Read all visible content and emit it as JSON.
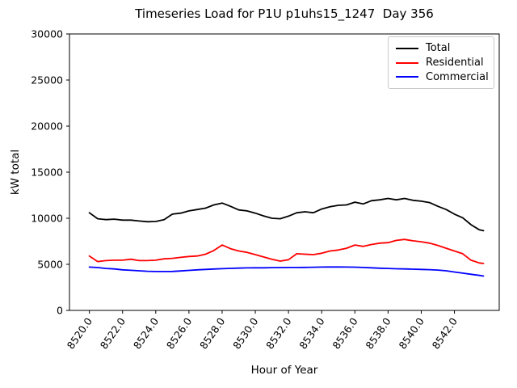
{
  "chart_data": {
    "type": "line",
    "title": "Timeseries Load for P1U p1uhs15_1247  Day 356",
    "xlabel": "Hour of Year",
    "ylabel": "kW total",
    "grid": false,
    "legend_position": "upper right",
    "xlim": [
      8518.8,
      8544.7
    ],
    "ylim": [
      0,
      30000
    ],
    "xticks": [
      8520,
      8522,
      8524,
      8526,
      8528,
      8530,
      8532,
      8534,
      8536,
      8538,
      8540,
      8542
    ],
    "xtick_labels": [
      "8520.0",
      "8522.0",
      "8524.0",
      "8526.0",
      "8528.0",
      "8530.0",
      "8532.0",
      "8534.0",
      "8536.0",
      "8538.0",
      "8540.0",
      "8542.0"
    ],
    "yticks": [
      0,
      5000,
      10000,
      15000,
      20000,
      25000,
      30000
    ],
    "ytick_labels": [
      "0",
      "5000",
      "10000",
      "15000",
      "20000",
      "25000",
      "30000"
    ],
    "x": [
      8520.0,
      8520.5,
      8521.0,
      8521.5,
      8522.0,
      8522.5,
      8523.0,
      8523.5,
      8524.0,
      8524.5,
      8525.0,
      8525.5,
      8526.0,
      8526.5,
      8527.0,
      8527.5,
      8528.0,
      8528.5,
      8529.0,
      8529.5,
      8530.0,
      8530.5,
      8531.0,
      8531.5,
      8532.0,
      8532.5,
      8533.0,
      8533.5,
      8534.0,
      8534.5,
      8535.0,
      8535.5,
      8536.0,
      8536.5,
      8537.0,
      8537.5,
      8538.0,
      8538.5,
      8539.0,
      8539.5,
      8540.0,
      8540.5,
      8541.0,
      8541.5,
      8542.0,
      8542.5,
      8543.0,
      8543.5,
      8543.75
    ],
    "series": [
      {
        "name": "Total",
        "color": "#000000",
        "values": [
          10600,
          9950,
          9850,
          9900,
          9800,
          9800,
          9700,
          9620,
          9650,
          9850,
          10450,
          10550,
          10800,
          10950,
          11100,
          11450,
          11650,
          11300,
          10900,
          10800,
          10550,
          10250,
          10000,
          9950,
          10230,
          10600,
          10700,
          10600,
          11000,
          11250,
          11400,
          11450,
          11750,
          11550,
          11900,
          12000,
          12150,
          12000,
          12150,
          11950,
          11850,
          11700,
          11300,
          10950,
          10450,
          10050,
          9300,
          8750,
          8650
        ]
      },
      {
        "name": "Residential",
        "color": "#ff0000",
        "values": [
          5900,
          5300,
          5400,
          5450,
          5450,
          5550,
          5400,
          5400,
          5450,
          5600,
          5650,
          5750,
          5850,
          5900,
          6100,
          6500,
          7100,
          6700,
          6450,
          6300,
          6050,
          5800,
          5550,
          5350,
          5500,
          6150,
          6100,
          6050,
          6200,
          6450,
          6550,
          6750,
          7100,
          6950,
          7150,
          7300,
          7350,
          7600,
          7700,
          7550,
          7450,
          7300,
          7050,
          6750,
          6450,
          6150,
          5450,
          5150,
          5100
        ]
      },
      {
        "name": "Commercial",
        "color": "#0000ff",
        "values": [
          4700,
          4650,
          4550,
          4500,
          4400,
          4350,
          4300,
          4250,
          4220,
          4220,
          4230,
          4280,
          4340,
          4400,
          4450,
          4490,
          4530,
          4560,
          4590,
          4610,
          4620,
          4620,
          4640,
          4650,
          4660,
          4660,
          4670,
          4680,
          4700,
          4710,
          4710,
          4700,
          4690,
          4660,
          4620,
          4580,
          4550,
          4520,
          4500,
          4470,
          4450,
          4420,
          4380,
          4300,
          4170,
          4040,
          3920,
          3800,
          3730
        ]
      }
    ]
  }
}
